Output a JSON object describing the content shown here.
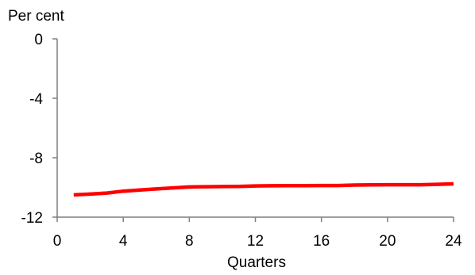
{
  "chart_data": {
    "type": "line",
    "title": "",
    "ylabel": "Per cent",
    "xlabel": "Quarters",
    "xlim": [
      0,
      24
    ],
    "ylim": [
      -12,
      0
    ],
    "x_ticks": [
      0,
      4,
      8,
      12,
      16,
      20,
      24
    ],
    "y_ticks": [
      0,
      -4,
      -8,
      -12
    ],
    "x_tick_labels": [
      "0",
      "4",
      "8",
      "12",
      "16",
      "20",
      "24"
    ],
    "y_tick_labels": [
      "0",
      "-4",
      "-8",
      "-12"
    ],
    "grid": false,
    "legend": "none",
    "series": [
      {
        "color": "#ff0000",
        "x": [
          1,
          2,
          3,
          4,
          5,
          6,
          7,
          8,
          9,
          10,
          11,
          12,
          13,
          14,
          15,
          16,
          17,
          18,
          19,
          20,
          21,
          22,
          23,
          24
        ],
        "y": [
          -10.5,
          -10.45,
          -10.38,
          -10.25,
          -10.17,
          -10.1,
          -10.03,
          -9.97,
          -9.95,
          -9.94,
          -9.93,
          -9.9,
          -9.89,
          -9.88,
          -9.88,
          -9.87,
          -9.87,
          -9.84,
          -9.83,
          -9.82,
          -9.82,
          -9.82,
          -9.79,
          -9.76
        ]
      }
    ]
  }
}
